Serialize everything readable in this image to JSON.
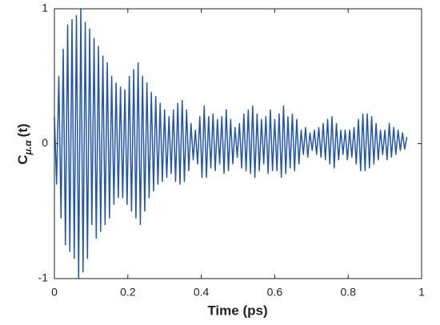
{
  "chart_data": {
    "type": "line",
    "xlabel": "Time (ps)",
    "ylabel": [
      "C",
      "μ.α",
      "(t)"
    ],
    "xlim": [
      0,
      1
    ],
    "xticks": [
      0,
      0.2,
      0.4,
      0.6,
      0.8,
      1
    ],
    "ylim": [
      -1,
      1
    ],
    "yticks": [
      -1,
      0,
      1
    ],
    "series": [
      {
        "color": "#2456a8",
        "x": [
          0,
          0.006,
          0.012,
          0.018,
          0.024,
          0.03,
          0.036,
          0.042,
          0.048,
          0.054,
          0.06,
          0.066,
          0.072,
          0.078,
          0.084,
          0.09,
          0.096,
          0.102,
          0.108,
          0.114,
          0.12,
          0.126,
          0.132,
          0.138,
          0.144,
          0.15,
          0.156,
          0.162,
          0.168,
          0.174,
          0.18,
          0.186,
          0.192,
          0.198,
          0.204,
          0.21,
          0.216,
          0.222,
          0.228,
          0.234,
          0.24,
          0.246,
          0.252,
          0.258,
          0.264,
          0.27,
          0.276,
          0.282,
          0.288,
          0.294,
          0.3,
          0.306,
          0.312,
          0.318,
          0.324,
          0.33,
          0.336,
          0.342,
          0.348,
          0.354,
          0.36,
          0.366,
          0.372,
          0.378,
          0.384,
          0.39,
          0.396,
          0.402,
          0.408,
          0.414,
          0.42,
          0.426,
          0.432,
          0.438,
          0.444,
          0.45,
          0.456,
          0.462,
          0.468,
          0.474,
          0.48,
          0.486,
          0.492,
          0.498,
          0.504,
          0.51,
          0.516,
          0.522,
          0.528,
          0.534,
          0.54,
          0.546,
          0.552,
          0.558,
          0.564,
          0.57,
          0.576,
          0.582,
          0.588,
          0.594,
          0.6,
          0.606,
          0.612,
          0.618,
          0.624,
          0.63,
          0.636,
          0.642,
          0.648,
          0.654,
          0.66,
          0.666,
          0.672,
          0.678,
          0.684,
          0.69,
          0.696,
          0.702,
          0.708,
          0.714,
          0.72,
          0.726,
          0.732,
          0.738,
          0.744,
          0.75,
          0.756,
          0.762,
          0.768,
          0.774,
          0.78,
          0.786,
          0.792,
          0.798,
          0.804,
          0.81,
          0.816,
          0.822,
          0.828,
          0.834,
          0.84,
          0.846,
          0.852,
          0.858,
          0.864,
          0.87,
          0.876,
          0.882,
          0.888,
          0.894,
          0.9,
          0.906,
          0.912,
          0.918,
          0.924,
          0.93,
          0.936,
          0.942,
          0.948,
          0.954,
          0.96
        ],
        "values": [
          0.2,
          -0.3,
          0.5,
          -0.55,
          0.7,
          -0.75,
          0.88,
          -0.8,
          0.92,
          -0.85,
          0.95,
          -1.0,
          1.0,
          -0.95,
          0.9,
          -0.85,
          0.85,
          -0.6,
          0.78,
          -0.7,
          0.72,
          -0.65,
          0.65,
          -0.6,
          0.6,
          -0.55,
          0.5,
          -0.45,
          0.45,
          -0.4,
          0.42,
          -0.4,
          0.4,
          -0.45,
          0.5,
          -0.5,
          0.55,
          -0.55,
          0.6,
          -0.6,
          0.5,
          -0.5,
          0.45,
          -0.4,
          0.38,
          -0.35,
          0.35,
          -0.3,
          0.3,
          -0.28,
          0.25,
          -0.25,
          0.2,
          -0.22,
          0.25,
          -0.28,
          0.3,
          -0.3,
          0.32,
          -0.28,
          0.25,
          -0.2,
          0.15,
          -0.12,
          0.1,
          -0.15,
          0.2,
          -0.25,
          0.28,
          -0.25,
          0.2,
          -0.18,
          0.22,
          -0.2,
          0.18,
          -0.15,
          0.2,
          -0.22,
          0.25,
          -0.2,
          0.18,
          -0.15,
          0.12,
          -0.1,
          0.15,
          -0.18,
          0.22,
          -0.2,
          0.25,
          -0.22,
          0.28,
          -0.25,
          0.22,
          -0.2,
          0.18,
          -0.15,
          0.2,
          -0.22,
          0.25,
          -0.2,
          0.18,
          -0.2,
          0.22,
          -0.25,
          0.28,
          -0.22,
          0.2,
          -0.18,
          0.22,
          -0.2,
          0.18,
          -0.15,
          0.1,
          -0.08,
          0.12,
          -0.1,
          0.08,
          -0.05,
          0.1,
          -0.08,
          0.12,
          -0.1,
          0.15,
          -0.12,
          0.18,
          -0.15,
          0.2,
          -0.18,
          0.15,
          -0.12,
          0.1,
          -0.08,
          0.1,
          -0.12,
          0.1,
          -0.1,
          0.12,
          -0.15,
          0.18,
          -0.2,
          0.22,
          -0.2,
          0.22,
          -0.18,
          0.2,
          -0.15,
          0.15,
          -0.12,
          0.1,
          -0.08,
          0.1,
          -0.12,
          0.15,
          -0.1,
          0.12,
          -0.08,
          0.1,
          -0.05,
          0.08,
          -0.04,
          0.05
        ]
      }
    ]
  }
}
